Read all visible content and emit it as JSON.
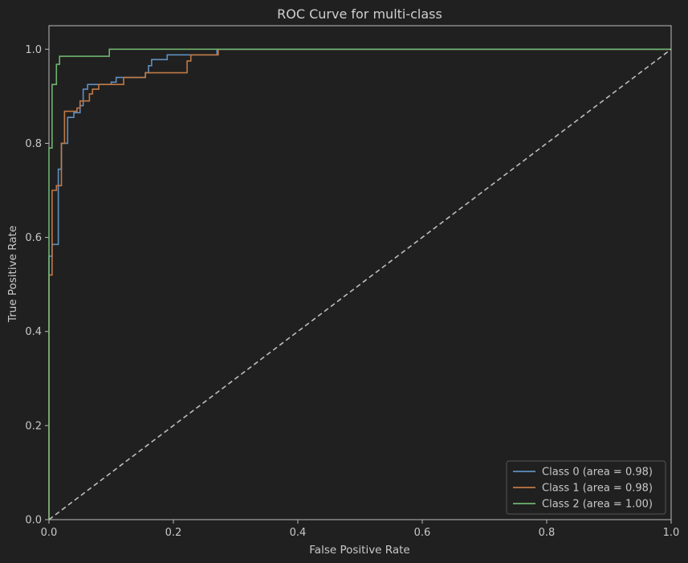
{
  "chart_data": {
    "type": "line",
    "title": "ROC Curve for multi-class",
    "xlabel": "False Positive Rate",
    "ylabel": "True Positive Rate",
    "xlim": [
      0.0,
      1.0
    ],
    "ylim": [
      0.0,
      1.05
    ],
    "xticks": [
      "0.0",
      "0.2",
      "0.4",
      "0.6",
      "0.8",
      "1.0"
    ],
    "yticks": [
      "0.0",
      "0.2",
      "0.4",
      "0.6",
      "0.8",
      "1.0"
    ],
    "xtick_values": [
      0.0,
      0.2,
      0.4,
      0.6,
      0.8,
      1.0
    ],
    "ytick_values": [
      0.0,
      0.2,
      0.4,
      0.6,
      0.8,
      1.0
    ],
    "grid": false,
    "legend_position": "lower-right",
    "series": [
      {
        "name": "Class 0 (area = 0.98)",
        "color": "#5f8fbf",
        "points": [
          [
            0,
            0
          ],
          [
            0,
            0.56
          ],
          [
            0.005,
            0.56
          ],
          [
            0.005,
            0.585
          ],
          [
            0.015,
            0.585
          ],
          [
            0.015,
            0.745
          ],
          [
            0.02,
            0.745
          ],
          [
            0.02,
            0.8
          ],
          [
            0.03,
            0.8
          ],
          [
            0.03,
            0.855
          ],
          [
            0.04,
            0.855
          ],
          [
            0.04,
            0.865
          ],
          [
            0.05,
            0.865
          ],
          [
            0.05,
            0.88
          ],
          [
            0.055,
            0.88
          ],
          [
            0.055,
            0.915
          ],
          [
            0.062,
            0.915
          ],
          [
            0.062,
            0.925
          ],
          [
            0.1,
            0.925
          ],
          [
            0.1,
            0.93
          ],
          [
            0.108,
            0.93
          ],
          [
            0.108,
            0.94
          ],
          [
            0.155,
            0.94
          ],
          [
            0.155,
            0.95
          ],
          [
            0.16,
            0.95
          ],
          [
            0.16,
            0.965
          ],
          [
            0.165,
            0.965
          ],
          [
            0.165,
            0.978
          ],
          [
            0.19,
            0.978
          ],
          [
            0.19,
            0.988
          ],
          [
            0.27,
            0.988
          ],
          [
            0.27,
            1.0
          ],
          [
            1.0,
            1.0
          ]
        ]
      },
      {
        "name": "Class 1 (area = 0.98)",
        "color": "#c07845",
        "points": [
          [
            0,
            0
          ],
          [
            0,
            0.52
          ],
          [
            0.005,
            0.52
          ],
          [
            0.005,
            0.7
          ],
          [
            0.012,
            0.7
          ],
          [
            0.012,
            0.71
          ],
          [
            0.02,
            0.71
          ],
          [
            0.02,
            0.8
          ],
          [
            0.025,
            0.8
          ],
          [
            0.025,
            0.868
          ],
          [
            0.045,
            0.868
          ],
          [
            0.045,
            0.875
          ],
          [
            0.05,
            0.875
          ],
          [
            0.05,
            0.89
          ],
          [
            0.065,
            0.89
          ],
          [
            0.065,
            0.905
          ],
          [
            0.07,
            0.905
          ],
          [
            0.07,
            0.915
          ],
          [
            0.08,
            0.915
          ],
          [
            0.08,
            0.925
          ],
          [
            0.12,
            0.925
          ],
          [
            0.12,
            0.94
          ],
          [
            0.155,
            0.94
          ],
          [
            0.155,
            0.95
          ],
          [
            0.222,
            0.95
          ],
          [
            0.222,
            0.975
          ],
          [
            0.228,
            0.975
          ],
          [
            0.228,
            0.988
          ],
          [
            0.272,
            0.988
          ],
          [
            0.272,
            1.0
          ],
          [
            1.0,
            1.0
          ]
        ]
      },
      {
        "name": "Class 2 (area = 1.00)",
        "color": "#6fb36f",
        "points": [
          [
            0,
            0
          ],
          [
            0,
            0.79
          ],
          [
            0.005,
            0.79
          ],
          [
            0.005,
            0.925
          ],
          [
            0.012,
            0.925
          ],
          [
            0.012,
            0.968
          ],
          [
            0.017,
            0.968
          ],
          [
            0.017,
            0.985
          ],
          [
            0.097,
            0.985
          ],
          [
            0.097,
            1.0
          ],
          [
            1.0,
            1.0
          ]
        ]
      }
    ],
    "reference_line": {
      "color": "#bdbdbd",
      "style": "dashed",
      "points": [
        [
          0,
          0
        ],
        [
          1,
          1
        ]
      ]
    }
  }
}
